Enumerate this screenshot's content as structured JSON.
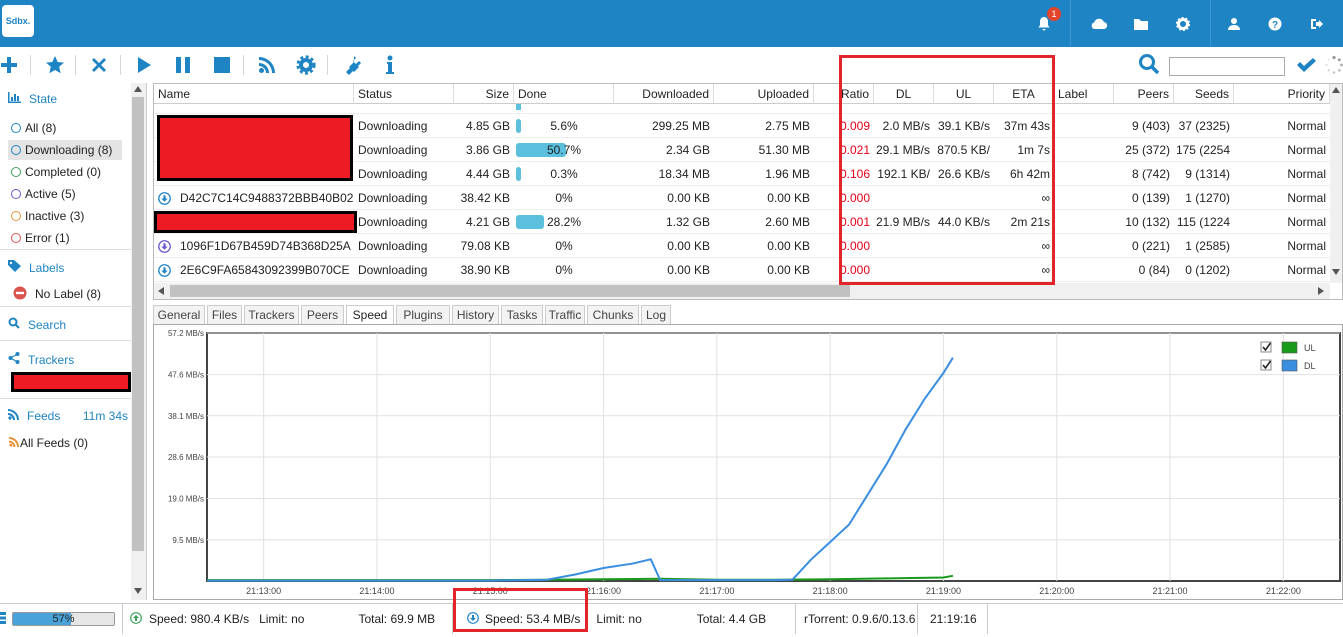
{
  "app": {
    "logo_text": "Sdbx.",
    "notification_count": "1"
  },
  "topbar_icons": [
    "bell-icon",
    "cloud-icon",
    "folder-icon",
    "gear-icon",
    "user-icon",
    "help-icon",
    "logout-icon"
  ],
  "toolbar_icons": [
    "add-icon",
    "star-icon",
    "remove-icon",
    "start-icon",
    "pause-icon",
    "stop-icon",
    "rss-icon",
    "settings-icon",
    "plugin-icon",
    "info-icon"
  ],
  "sidebar": {
    "state_title": "State",
    "states": [
      {
        "label": "All (8)",
        "color": "#1f84c4"
      },
      {
        "label": "Downloading (8)",
        "color": "#1f84c4"
      },
      {
        "label": "Completed (0)",
        "color": "#3aa35b"
      },
      {
        "label": "Active (5)",
        "color": "#6a5acd"
      },
      {
        "label": "Inactive (3)",
        "color": "#e8902f"
      },
      {
        "label": "Error (1)",
        "color": "#d9534f"
      }
    ],
    "labels_title": "Labels",
    "no_label": "No Label (8)",
    "search_title": "Search",
    "trackers_title": "Trackers",
    "feeds_title": "Feeds",
    "feeds_time": "11m 34s",
    "all_feeds": "All Feeds (0)"
  },
  "table": {
    "columns": [
      "Name",
      "Status",
      "Size",
      "Done",
      "Downloaded",
      "Uploaded",
      "Ratio",
      "DL",
      "UL",
      "ETA",
      "Label",
      "Peers",
      "Seeds",
      "Priority"
    ],
    "rows": [
      {
        "name": "",
        "status": "Downloading",
        "size": "4.85 GB",
        "done": "5.6%",
        "done_frac": 0.056,
        "downloaded": "299.25 MB",
        "uploaded": "2.75 MB",
        "ratio": "0.009",
        "dl": "2.0 MB/s",
        "ul": "39.1 KB/s",
        "eta": "37m 43s",
        "label": "",
        "peers": "9 (403)",
        "seeds": "37 (2325)",
        "priority": "Normal",
        "icon": ""
      },
      {
        "name": "",
        "status": "Downloading",
        "size": "3.86 GB",
        "done": "50.7%",
        "done_frac": 0.507,
        "downloaded": "2.34 GB",
        "uploaded": "51.30 MB",
        "ratio": "0.021",
        "dl": "29.1 MB/s",
        "ul": "870.5 KB/",
        "eta": "1m 7s",
        "label": "",
        "peers": "25 (372)",
        "seeds": "175 (2254",
        "priority": "Normal",
        "icon": ""
      },
      {
        "name": "",
        "status": "Downloading",
        "size": "4.44 GB",
        "done": "0.3%",
        "done_frac": 0.003,
        "downloaded": "18.34 MB",
        "uploaded": "1.96 MB",
        "ratio": "0.106",
        "dl": "192.1 KB/",
        "ul": "26.6 KB/s",
        "eta": "6h 42m",
        "label": "",
        "peers": "8 (742)",
        "seeds": "9 (1314)",
        "priority": "Normal",
        "icon": ""
      },
      {
        "name": "D42C7C14C9488372BBB40B02",
        "status": "Downloading",
        "size": "38.42 KB",
        "done": "0%",
        "done_frac": 0,
        "downloaded": "0.00 KB",
        "uploaded": "0.00 KB",
        "ratio": "0.000",
        "dl": "",
        "ul": "",
        "eta": "∞",
        "label": "",
        "peers": "0 (139)",
        "seeds": "1 (1270)",
        "priority": "Normal",
        "icon": "download-icon"
      },
      {
        "name": "",
        "status": "Downloading",
        "size": "4.21 GB",
        "done": "28.2%",
        "done_frac": 0.282,
        "downloaded": "1.32 GB",
        "uploaded": "2.60 MB",
        "ratio": "0.001",
        "dl": "21.9 MB/s",
        "ul": "44.0 KB/s",
        "eta": "2m 21s",
        "label": "",
        "peers": "10 (132)",
        "seeds": "115 (1224",
        "priority": "Normal",
        "icon": ""
      },
      {
        "name": "1096F1D67B459D74B368D25A",
        "status": "Downloading",
        "size": "79.08 KB",
        "done": "0%",
        "done_frac": 0,
        "downloaded": "0.00 KB",
        "uploaded": "0.00 KB",
        "ratio": "0.000",
        "dl": "",
        "ul": "",
        "eta": "∞",
        "label": "",
        "peers": "0 (221)",
        "seeds": "1 (2585)",
        "priority": "Normal",
        "icon": "download-icon-purple"
      },
      {
        "name": "2E6C9FA65843092399B070CE",
        "status": "Downloading",
        "size": "38.90 KB",
        "done": "0%",
        "done_frac": 0,
        "downloaded": "0.00 KB",
        "uploaded": "0.00 KB",
        "ratio": "0.000",
        "dl": "",
        "ul": "",
        "eta": "∞",
        "label": "",
        "peers": "0 (84)",
        "seeds": "0 (1202)",
        "priority": "Normal",
        "icon": "download-icon"
      }
    ]
  },
  "tabs": [
    "General",
    "Files",
    "Trackers",
    "Peers",
    "Speed",
    "Plugins",
    "History",
    "Tasks",
    "Traffic",
    "Chunks",
    "Log"
  ],
  "active_tab": "Speed",
  "chart_data": {
    "type": "line",
    "y_ticks": [
      "57.2 MB/s",
      "47.6 MB/s",
      "38.1 MB/s",
      "28.6 MB/s",
      "19.0 MB/s",
      "9.5 MB/s"
    ],
    "y_tick_values": [
      57.2,
      47.6,
      38.1,
      28.6,
      19.0,
      9.5
    ],
    "ylim": [
      0,
      57.2
    ],
    "x_ticks": [
      "21:13:00",
      "21:14:00",
      "21:15:00",
      "21:16:00",
      "21:17:00",
      "21:18:00",
      "21:19:00",
      "21:20:00",
      "21:21:00",
      "21:22:00"
    ],
    "xlim": [
      "21:12:30",
      "21:22:30"
    ],
    "series": [
      {
        "name": "UL",
        "color": "#1a9a1a",
        "x": [
          "21:12:30",
          "21:15:00",
          "21:15:30",
          "21:16:00",
          "21:16:30",
          "21:17:00",
          "21:17:30",
          "21:18:00",
          "21:18:30",
          "21:19:00",
          "21:19:05"
        ],
        "values": [
          0.2,
          0.2,
          0.3,
          0.4,
          0.5,
          0.3,
          0.3,
          0.4,
          0.6,
          0.8,
          1.2
        ]
      },
      {
        "name": "DL",
        "color": "#3a8ee0",
        "x": [
          "21:12:30",
          "21:15:00",
          "21:15:30",
          "21:15:45",
          "21:16:00",
          "21:16:15",
          "21:16:25",
          "21:16:30",
          "21:17:00",
          "21:17:30",
          "21:17:40",
          "21:17:50",
          "21:18:00",
          "21:18:10",
          "21:18:20",
          "21:18:30",
          "21:18:40",
          "21:18:50",
          "21:19:00",
          "21:19:05"
        ],
        "values": [
          0.1,
          0.1,
          0.3,
          1.5,
          3.0,
          4.0,
          5.0,
          0.2,
          0.2,
          0.2,
          0.3,
          5.0,
          9.0,
          13.0,
          20.0,
          27.0,
          35.0,
          42.0,
          48.0,
          51.5
        ]
      }
    ],
    "legend": [
      {
        "label": "UL",
        "checked": true
      },
      {
        "label": "DL",
        "checked": true
      }
    ]
  },
  "statusbar": {
    "disk_pct": "57%",
    "disk_frac": 0.57,
    "ul_speed": "Speed: 980.4 KB/s",
    "ul_limit": "Limit: no",
    "ul_total": "Total: 69.9 MB",
    "dl_speed": "Speed: 53.4 MB/s",
    "dl_limit": "Limit: no",
    "dl_total": "Total: 4.4 GB",
    "version": "rTorrent: 0.9.6/0.13.6",
    "time": "21:19:16"
  },
  "colors": {
    "brand": "#1f84c4",
    "annotation": "#e2252b",
    "redaction": "#ed1c24"
  }
}
